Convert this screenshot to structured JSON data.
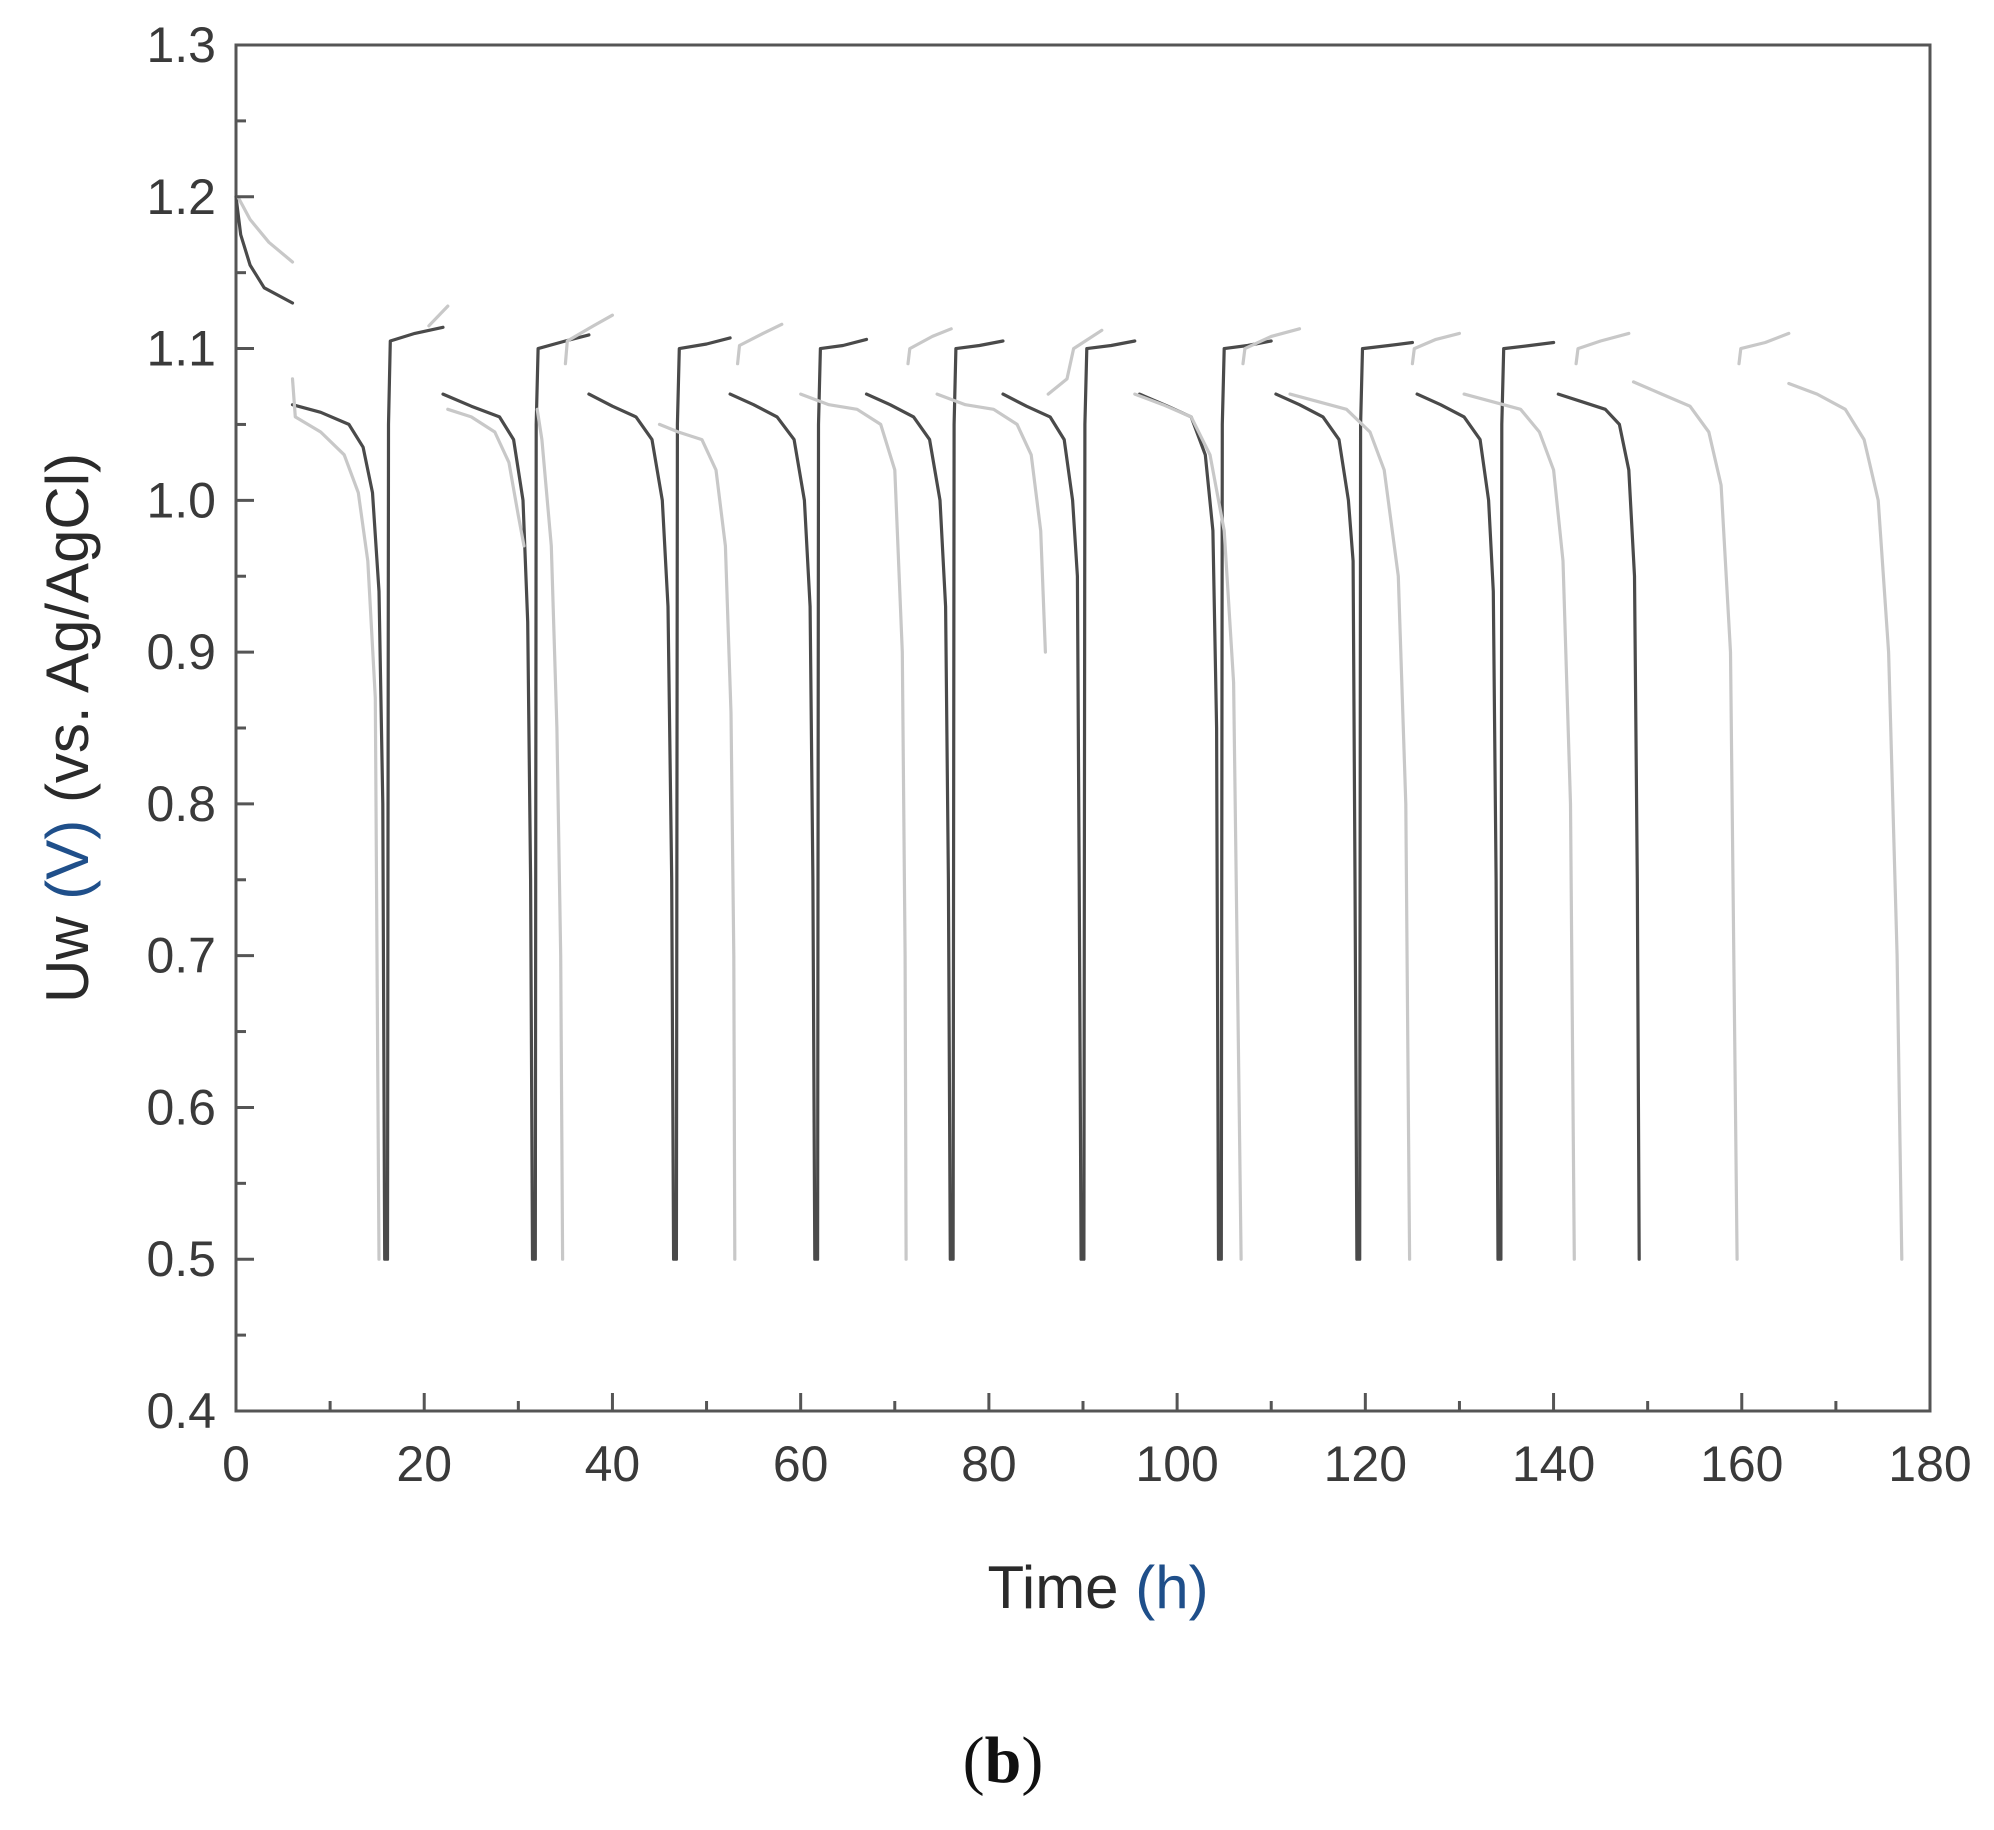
{
  "chart_data": {
    "type": "line",
    "panel_label": {
      "open": "(",
      "letter": "b",
      "close": ")"
    },
    "xlabel": {
      "text": "Time ",
      "unit": "(h)"
    },
    "ylabel": {
      "prefix": "Uw ",
      "unit": "(V)",
      "suffix": " (vs. Ag/AgCl)"
    },
    "xlim": [
      0,
      180
    ],
    "ylim": [
      0.4,
      1.3
    ],
    "x_ticks": [
      0,
      20,
      40,
      60,
      80,
      100,
      120,
      140,
      160,
      180
    ],
    "x_tick_labels": [
      "0",
      "20",
      "40",
      "60",
      "80",
      "100",
      "120",
      "140",
      "160",
      "180"
    ],
    "y_ticks": [
      0.4,
      0.5,
      0.6,
      0.7,
      0.8,
      0.9,
      1.0,
      1.1,
      1.2,
      1.3
    ],
    "y_tick_labels": [
      "0.4",
      "0.5",
      "0.6",
      "0.7",
      "0.8",
      "0.9",
      "1.0",
      "1.1",
      "1.2",
      "1.3"
    ],
    "grid": false,
    "legend": "none",
    "series": [
      {
        "color": "#4a4a4a",
        "segments": [
          [
            [
              0,
              1.2
            ],
            [
              0.5,
              1.175
            ],
            [
              1.5,
              1.155
            ],
            [
              3,
              1.14
            ],
            [
              6,
              1.13
            ]
          ],
          [
            [
              6,
              1.063
            ],
            [
              9,
              1.058
            ],
            [
              12,
              1.05
            ],
            [
              13.5,
              1.035
            ],
            [
              14.5,
              1.005
            ],
            [
              15.2,
              0.94
            ],
            [
              15.6,
              0.8
            ],
            [
              15.8,
              0.5
            ],
            [
              16.1,
              0.5
            ],
            [
              16.2,
              1.05
            ],
            [
              16.4,
              1.105
            ],
            [
              19,
              1.11
            ],
            [
              22,
              1.114
            ]
          ],
          [
            [
              22,
              1.07
            ],
            [
              25,
              1.062
            ],
            [
              28,
              1.055
            ],
            [
              29.5,
              1.04
            ],
            [
              30.5,
              1.0
            ],
            [
              31,
              0.92
            ],
            [
              31.3,
              0.75
            ],
            [
              31.5,
              0.5
            ],
            [
              31.8,
              0.5
            ],
            [
              31.9,
              1.05
            ],
            [
              32.1,
              1.1
            ],
            [
              35,
              1.105
            ],
            [
              37.5,
              1.109
            ]
          ],
          [
            [
              37.5,
              1.07
            ],
            [
              40,
              1.062
            ],
            [
              42.5,
              1.055
            ],
            [
              44.2,
              1.04
            ],
            [
              45.3,
              1.0
            ],
            [
              45.9,
              0.93
            ],
            [
              46.3,
              0.75
            ],
            [
              46.5,
              0.5
            ],
            [
              46.8,
              0.5
            ],
            [
              46.9,
              1.05
            ],
            [
              47.1,
              1.1
            ],
            [
              50,
              1.103
            ],
            [
              52.5,
              1.107
            ]
          ],
          [
            [
              52.5,
              1.07
            ],
            [
              55,
              1.063
            ],
            [
              57.5,
              1.055
            ],
            [
              59.3,
              1.04
            ],
            [
              60.4,
              1.0
            ],
            [
              61,
              0.93
            ],
            [
              61.3,
              0.75
            ],
            [
              61.5,
              0.5
            ],
            [
              61.8,
              0.5
            ],
            [
              61.9,
              1.05
            ],
            [
              62.1,
              1.1
            ],
            [
              64.5,
              1.102
            ],
            [
              67,
              1.106
            ]
          ],
          [
            [
              67,
              1.07
            ],
            [
              69.5,
              1.063
            ],
            [
              72,
              1.055
            ],
            [
              73.7,
              1.04
            ],
            [
              74.8,
              1.0
            ],
            [
              75.4,
              0.93
            ],
            [
              75.7,
              0.75
            ],
            [
              75.9,
              0.5
            ],
            [
              76.2,
              0.5
            ],
            [
              76.3,
              1.05
            ],
            [
              76.5,
              1.1
            ],
            [
              79,
              1.102
            ],
            [
              81.5,
              1.105
            ]
          ],
          [
            [
              81.5,
              1.07
            ],
            [
              84,
              1.062
            ],
            [
              86.5,
              1.055
            ],
            [
              88,
              1.04
            ],
            [
              88.9,
              1.0
            ],
            [
              89.4,
              0.95
            ],
            [
              89.6,
              0.75
            ],
            [
              89.8,
              0.5
            ],
            [
              90.1,
              0.5
            ],
            [
              90.2,
              1.05
            ],
            [
              90.4,
              1.1
            ],
            [
              93,
              1.102
            ],
            [
              95.5,
              1.105
            ]
          ],
          [
            [
              96,
              1.07
            ],
            [
              99,
              1.062
            ],
            [
              101.5,
              1.055
            ],
            [
              103,
              1.03
            ],
            [
              103.8,
              0.98
            ],
            [
              104.2,
              0.85
            ],
            [
              104.4,
              0.5
            ],
            [
              104.7,
              0.5
            ],
            [
              104.8,
              1.05
            ],
            [
              105,
              1.1
            ],
            [
              107.5,
              1.102
            ],
            [
              110,
              1.105
            ]
          ],
          [
            [
              110.5,
              1.07
            ],
            [
              113,
              1.063
            ],
            [
              115.5,
              1.055
            ],
            [
              117.2,
              1.04
            ],
            [
              118.2,
              1.0
            ],
            [
              118.7,
              0.96
            ],
            [
              118.9,
              0.75
            ],
            [
              119.1,
              0.5
            ],
            [
              119.4,
              0.5
            ],
            [
              119.5,
              1.05
            ],
            [
              119.7,
              1.1
            ],
            [
              122.5,
              1.102
            ],
            [
              125,
              1.104
            ]
          ],
          [
            [
              125.5,
              1.07
            ],
            [
              128,
              1.063
            ],
            [
              130.5,
              1.055
            ],
            [
              132.2,
              1.04
            ],
            [
              133.1,
              1.0
            ],
            [
              133.6,
              0.94
            ],
            [
              133.9,
              0.75
            ],
            [
              134.1,
              0.5
            ],
            [
              134.4,
              0.5
            ],
            [
              134.5,
              1.05
            ],
            [
              134.7,
              1.1
            ],
            [
              137.5,
              1.102
            ],
            [
              140,
              1.104
            ]
          ],
          [
            [
              140.5,
              1.07
            ],
            [
              143,
              1.065
            ],
            [
              145.5,
              1.06
            ],
            [
              147,
              1.05
            ],
            [
              148,
              1.02
            ],
            [
              148.6,
              0.95
            ],
            [
              148.9,
              0.75
            ],
            [
              149.1,
              0.5
            ]
          ]
        ]
      },
      {
        "color": "#c8c8c8",
        "segments": [
          [
            [
              0.2,
              1.2
            ],
            [
              1.5,
              1.185
            ],
            [
              3.5,
              1.17
            ],
            [
              6,
              1.157
            ]
          ],
          [
            [
              6,
              1.08
            ],
            [
              6.3,
              1.055
            ],
            [
              9,
              1.045
            ],
            [
              11.5,
              1.03
            ],
            [
              13,
              1.005
            ],
            [
              14,
              0.96
            ],
            [
              14.8,
              0.87
            ],
            [
              15.2,
              0.5
            ]
          ],
          [
            [
              20.5,
              1.115
            ],
            [
              22.5,
              1.128
            ]
          ],
          [
            [
              22.5,
              1.06
            ],
            [
              25,
              1.055
            ],
            [
              27.5,
              1.045
            ],
            [
              29,
              1.025
            ],
            [
              30,
              0.99
            ],
            [
              30.6,
              0.97
            ]
          ],
          [
            [
              32,
              1.06
            ],
            [
              32.5,
              1.04
            ],
            [
              33.5,
              0.97
            ],
            [
              34.1,
              0.85
            ],
            [
              34.5,
              0.7
            ],
            [
              34.7,
              0.5
            ]
          ],
          [
            [
              35,
              1.09
            ],
            [
              35.2,
              1.105
            ],
            [
              38,
              1.115
            ],
            [
              40,
              1.122
            ]
          ],
          [
            [
              45,
              1.05
            ],
            [
              47,
              1.045
            ],
            [
              49.5,
              1.04
            ],
            [
              51,
              1.02
            ],
            [
              52,
              0.97
            ],
            [
              52.6,
              0.86
            ],
            [
              52.9,
              0.7
            ],
            [
              53,
              0.5
            ]
          ],
          [
            [
              53.3,
              1.09
            ],
            [
              53.5,
              1.102
            ],
            [
              56,
              1.11
            ],
            [
              58,
              1.116
            ]
          ],
          [
            [
              60,
              1.07
            ],
            [
              63,
              1.063
            ],
            [
              66,
              1.06
            ],
            [
              68.5,
              1.05
            ],
            [
              70,
              1.02
            ],
            [
              70.8,
              0.9
            ],
            [
              71.1,
              0.7
            ],
            [
              71.2,
              0.5
            ]
          ],
          [
            [
              71.4,
              1.09
            ],
            [
              71.6,
              1.1
            ],
            [
              74,
              1.108
            ],
            [
              76,
              1.113
            ]
          ],
          [
            [
              74.5,
              1.07
            ],
            [
              77.5,
              1.063
            ],
            [
              80.5,
              1.06
            ],
            [
              83,
              1.05
            ],
            [
              84.5,
              1.03
            ],
            [
              85.5,
              0.98
            ],
            [
              86,
              0.9
            ]
          ],
          [
            [
              86.3,
              1.07
            ],
            [
              88.3,
              1.08
            ],
            [
              89,
              1.1
            ],
            [
              92,
              1.112
            ]
          ],
          [
            [
              95.5,
              1.07
            ],
            [
              98.5,
              1.063
            ],
            [
              101.5,
              1.055
            ],
            [
              103.5,
              1.03
            ],
            [
              105,
              0.98
            ],
            [
              106,
              0.88
            ],
            [
              106.6,
              0.6
            ],
            [
              106.8,
              0.5
            ]
          ],
          [
            [
              107,
              1.09
            ],
            [
              107.2,
              1.1
            ],
            [
              110,
              1.108
            ],
            [
              113,
              1.113
            ]
          ],
          [
            [
              112,
              1.07
            ],
            [
              115,
              1.065
            ],
            [
              118,
              1.06
            ],
            [
              120.5,
              1.045
            ],
            [
              122,
              1.02
            ],
            [
              123.5,
              0.95
            ],
            [
              124.3,
              0.8
            ],
            [
              124.7,
              0.5
            ]
          ],
          [
            [
              125,
              1.09
            ],
            [
              125.2,
              1.1
            ],
            [
              127.5,
              1.106
            ],
            [
              130,
              1.11
            ]
          ],
          [
            [
              130.5,
              1.07
            ],
            [
              133.5,
              1.065
            ],
            [
              136.5,
              1.06
            ],
            [
              138.5,
              1.045
            ],
            [
              140,
              1.02
            ],
            [
              141,
              0.96
            ],
            [
              141.8,
              0.8
            ],
            [
              142.2,
              0.5
            ]
          ],
          [
            [
              142.4,
              1.09
            ],
            [
              142.6,
              1.1
            ],
            [
              145,
              1.105
            ],
            [
              148,
              1.11
            ]
          ],
          [
            [
              148.5,
              1.078
            ],
            [
              151.5,
              1.07
            ],
            [
              154.5,
              1.062
            ],
            [
              156.5,
              1.045
            ],
            [
              157.8,
              1.01
            ],
            [
              158.8,
              0.9
            ],
            [
              159.5,
              0.5
            ]
          ],
          [
            [
              159.7,
              1.09
            ],
            [
              159.9,
              1.1
            ],
            [
              162.5,
              1.104
            ],
            [
              165,
              1.11
            ]
          ],
          [
            [
              165,
              1.077
            ],
            [
              168,
              1.07
            ],
            [
              171,
              1.06
            ],
            [
              173,
              1.04
            ],
            [
              174.5,
              1.0
            ],
            [
              175.6,
              0.9
            ],
            [
              176.5,
              0.7
            ],
            [
              177,
              0.5
            ]
          ]
        ]
      }
    ]
  }
}
